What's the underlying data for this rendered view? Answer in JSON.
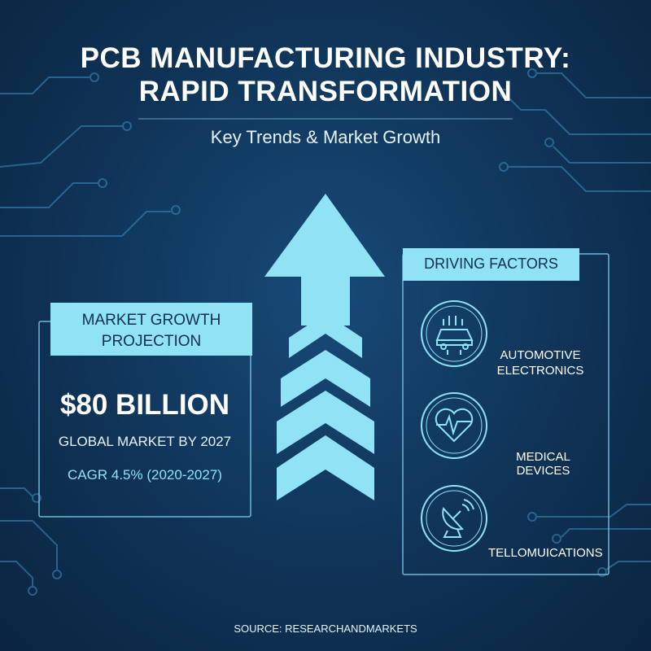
{
  "header": {
    "title_lines": [
      "PCB MANUFACTURING INDUSTRY:",
      "RAPID TRANSFORMATION"
    ],
    "subtitle": "Key Trends & Market Growth"
  },
  "market_panel": {
    "heading": "MARKET GROWTH PROJECTION",
    "headline": "$80 BILLION",
    "detail": "GLOBAL MARKET BY 2027",
    "cagr": "CAGR 4.5% (2020-2027)"
  },
  "factors_panel": {
    "heading": "DRIVING FACTORS",
    "items": [
      {
        "label": "AUTOMOTIVE ELECTRONICS"
      },
      {
        "label": "MEDICAL DEVICES"
      },
      {
        "label": "TELLOMUICATIONS"
      }
    ]
  },
  "footer": {
    "source": "SOURCE: RESEARCHANDMARKETS"
  }
}
